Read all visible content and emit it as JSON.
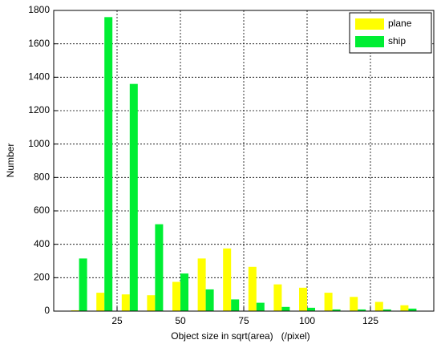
{
  "chart_data": {
    "type": "bar",
    "x": [
      10,
      20,
      30,
      40,
      50,
      60,
      70,
      80,
      90,
      100,
      110,
      120,
      130,
      140
    ],
    "series": [
      {
        "name": "plane",
        "color": "#ffff00",
        "values": [
          5,
          110,
          100,
          95,
          175,
          315,
          375,
          265,
          160,
          140,
          110,
          85,
          55,
          35
        ]
      },
      {
        "name": "ship",
        "color": "#00ee33",
        "values": [
          315,
          1760,
          1360,
          520,
          225,
          130,
          70,
          50,
          25,
          20,
          10,
          10,
          10,
          15
        ]
      }
    ],
    "xlabel": "Object size in sqrt(area)   (/pixel)",
    "ylabel": "Number",
    "xlim": [
      0,
      150
    ],
    "xticks": [
      25,
      50,
      75,
      100,
      125
    ],
    "ylim": [
      0,
      1800
    ],
    "yticks": [
      0,
      200,
      400,
      600,
      800,
      1000,
      1200,
      1400,
      1600,
      1800
    ],
    "grid": true,
    "legend": "upper-right"
  }
}
